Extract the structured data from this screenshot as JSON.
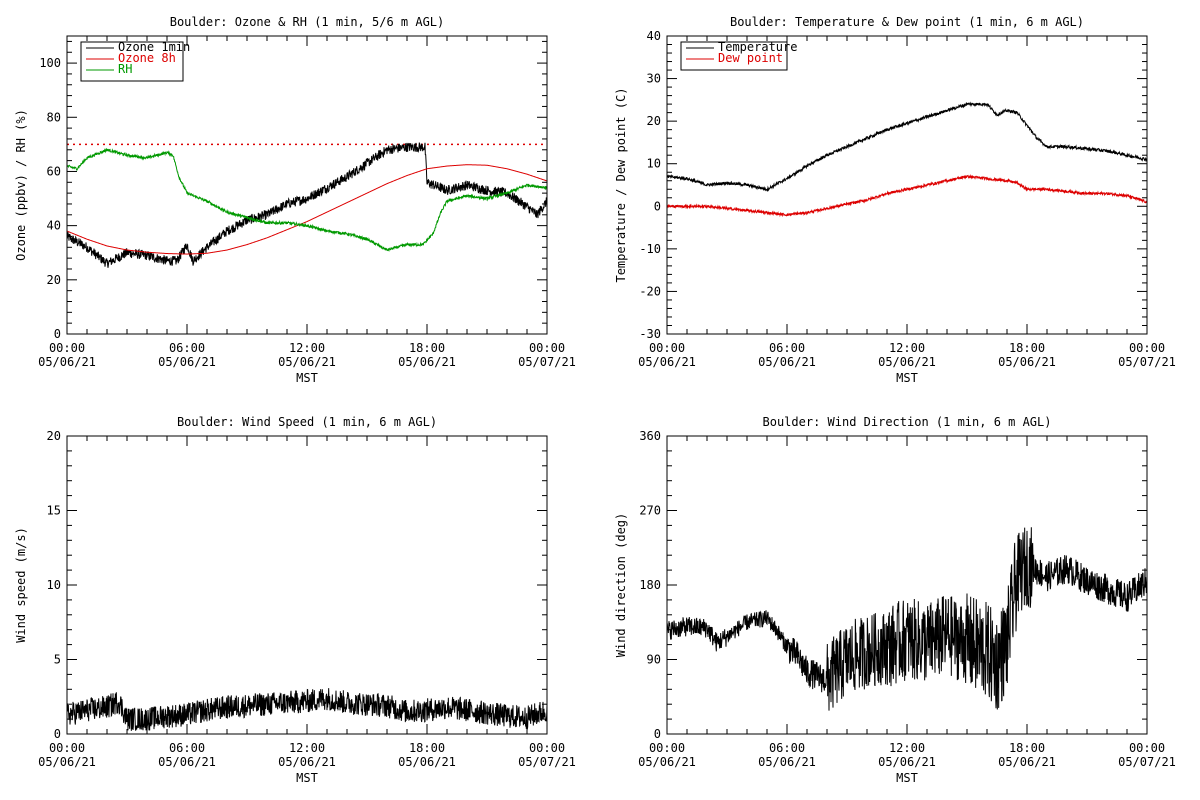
{
  "chart_data": [
    {
      "type": "line",
      "title": "Boulder: Ozone & RH (1 min, 5/6 m AGL)",
      "xlabel": "MST",
      "ylabel": "Ozone (ppbv) / RH (%)",
      "xlim": [
        0,
        24
      ],
      "ylim": [
        0,
        110
      ],
      "yticks": [
        0,
        20,
        40,
        60,
        80,
        100
      ],
      "x_ticks": [
        {
          "x": 0,
          "time": "00:00",
          "date": "05/06/21"
        },
        {
          "x": 6,
          "time": "06:00",
          "date": "05/06/21"
        },
        {
          "x": 12,
          "time": "12:00",
          "date": "05/06/21"
        },
        {
          "x": 18,
          "time": "18:00",
          "date": "05/06/21"
        },
        {
          "x": 24,
          "time": "00:00",
          "date": "05/07/21"
        }
      ],
      "reference_line": {
        "y": 70,
        "color": "#dd0000",
        "style": "dotted"
      },
      "legend_position": "top-left",
      "series": [
        {
          "name": "Ozone 1min",
          "color": "#000000",
          "noise": 1.8,
          "points": [
            [
              0,
              36
            ],
            [
              1,
              32
            ],
            [
              2,
              26
            ],
            [
              2.5,
              28
            ],
            [
              3,
              30
            ],
            [
              4,
              29
            ],
            [
              5,
              27
            ],
            [
              5.5,
              27
            ],
            [
              6,
              33
            ],
            [
              6.3,
              27
            ],
            [
              7,
              32
            ],
            [
              8,
              38
            ],
            [
              9,
              42
            ],
            [
              10,
              44
            ],
            [
              11,
              48
            ],
            [
              12,
              50
            ],
            [
              13,
              54
            ],
            [
              14,
              58
            ],
            [
              15,
              63
            ],
            [
              16,
              68
            ],
            [
              17,
              69
            ],
            [
              17.9,
              69
            ],
            [
              18,
              56
            ],
            [
              19,
              53
            ],
            [
              20,
              55
            ],
            [
              21,
              53
            ],
            [
              22,
              52
            ],
            [
              23,
              47
            ],
            [
              23.5,
              44
            ],
            [
              24,
              49
            ]
          ]
        },
        {
          "name": "Ozone 8h",
          "color": "#dd0000",
          "noise": 0,
          "points": [
            [
              0,
              38
            ],
            [
              1,
              35
            ],
            [
              2,
              32.5
            ],
            [
              3,
              31
            ],
            [
              4,
              30.2
            ],
            [
              5,
              29.7
            ],
            [
              6,
              29.5
            ],
            [
              7,
              29.8
            ],
            [
              8,
              31
            ],
            [
              9,
              33
            ],
            [
              10,
              35.5
            ],
            [
              11,
              38.5
            ],
            [
              12,
              41.5
            ],
            [
              13,
              45
            ],
            [
              14,
              48.5
            ],
            [
              15,
              52
            ],
            [
              16,
              55.5
            ],
            [
              17,
              58.5
            ],
            [
              18,
              61
            ],
            [
              19,
              62
            ],
            [
              20,
              62.5
            ],
            [
              21,
              62.3
            ],
            [
              22,
              61
            ],
            [
              23,
              59
            ],
            [
              24,
              56.5
            ]
          ]
        },
        {
          "name": "RH",
          "color": "#009900",
          "noise": 0.5,
          "points": [
            [
              0,
              62
            ],
            [
              0.5,
              61
            ],
            [
              1,
              65
            ],
            [
              2,
              68
            ],
            [
              3,
              66
            ],
            [
              4,
              65
            ],
            [
              5,
              67
            ],
            [
              5.3,
              66
            ],
            [
              5.6,
              58
            ],
            [
              6,
              52
            ],
            [
              7,
              49
            ],
            [
              8,
              45
            ],
            [
              8.5,
              44
            ],
            [
              9,
              43
            ],
            [
              10,
              41
            ],
            [
              11,
              41
            ],
            [
              12,
              40
            ],
            [
              13,
              38
            ],
            [
              14,
              37
            ],
            [
              15,
              35
            ],
            [
              16,
              31
            ],
            [
              17,
              33
            ],
            [
              17.8,
              33
            ],
            [
              18.3,
              37
            ],
            [
              18.7,
              45
            ],
            [
              19,
              49
            ],
            [
              20,
              51
            ],
            [
              21,
              50
            ],
            [
              22,
              52
            ],
            [
              23,
              55
            ],
            [
              24,
              54
            ]
          ]
        }
      ]
    },
    {
      "type": "line",
      "title": "Boulder: Temperature & Dew point (1 min, 6 m AGL)",
      "xlabel": "MST",
      "ylabel": "Temperature / Dew point (C)",
      "xlim": [
        0,
        24
      ],
      "ylim": [
        -30,
        40
      ],
      "yticks": [
        -30,
        -20,
        -10,
        0,
        10,
        20,
        30,
        40
      ],
      "x_ticks": [
        {
          "x": 0,
          "time": "00:00",
          "date": "05/06/21"
        },
        {
          "x": 6,
          "time": "06:00",
          "date": "05/06/21"
        },
        {
          "x": 12,
          "time": "12:00",
          "date": "05/06/21"
        },
        {
          "x": 18,
          "time": "18:00",
          "date": "05/06/21"
        },
        {
          "x": 24,
          "time": "00:00",
          "date": "05/07/21"
        }
      ],
      "legend_position": "top-left",
      "series": [
        {
          "name": "Temperature",
          "color": "#000000",
          "noise": 0.35,
          "points": [
            [
              0,
              7
            ],
            [
              1,
              6.5
            ],
            [
              2,
              5
            ],
            [
              3,
              5.5
            ],
            [
              4,
              5
            ],
            [
              5,
              4
            ],
            [
              6,
              6.5
            ],
            [
              7,
              9.5
            ],
            [
              8,
              12
            ],
            [
              9,
              14
            ],
            [
              10,
              16
            ],
            [
              11,
              18
            ],
            [
              12,
              19.5
            ],
            [
              13,
              21
            ],
            [
              14,
              22.5
            ],
            [
              15,
              24
            ],
            [
              16,
              24
            ],
            [
              16.5,
              21.5
            ],
            [
              17,
              22.5
            ],
            [
              17.5,
              22
            ],
            [
              18,
              19
            ],
            [
              18.5,
              16
            ],
            [
              19,
              14
            ],
            [
              20,
              14
            ],
            [
              21,
              13.5
            ],
            [
              22,
              13
            ],
            [
              23,
              12
            ],
            [
              24,
              11
            ]
          ]
        },
        {
          "name": "Dew point",
          "color": "#dd0000",
          "noise": 0.3,
          "points": [
            [
              0,
              0
            ],
            [
              1,
              0
            ],
            [
              2,
              0
            ],
            [
              3,
              -0.5
            ],
            [
              4,
              -1
            ],
            [
              5,
              -1.5
            ],
            [
              6,
              -2
            ],
            [
              7,
              -1.5
            ],
            [
              8,
              -0.5
            ],
            [
              9,
              0.5
            ],
            [
              10,
              1.5
            ],
            [
              11,
              3
            ],
            [
              12,
              4
            ],
            [
              13,
              5
            ],
            [
              14,
              6
            ],
            [
              15,
              7
            ],
            [
              16,
              6.5
            ],
            [
              17,
              6
            ],
            [
              17.5,
              5.5
            ],
            [
              18,
              4
            ],
            [
              19,
              4
            ],
            [
              20,
              3.5
            ],
            [
              21,
              3
            ],
            [
              22,
              3
            ],
            [
              23,
              2.5
            ],
            [
              24,
              1
            ]
          ]
        }
      ]
    },
    {
      "type": "line",
      "title": "Boulder: Wind Speed (1 min, 6 m AGL)",
      "xlabel": "MST",
      "ylabel": "Wind speed (m/s)",
      "xlim": [
        0,
        24
      ],
      "ylim": [
        0,
        20
      ],
      "yticks": [
        0,
        5,
        10,
        15,
        20
      ],
      "x_ticks": [
        {
          "x": 0,
          "time": "00:00",
          "date": "05/06/21"
        },
        {
          "x": 6,
          "time": "06:00",
          "date": "05/06/21"
        },
        {
          "x": 12,
          "time": "12:00",
          "date": "05/06/21"
        },
        {
          "x": 18,
          "time": "18:00",
          "date": "05/06/21"
        },
        {
          "x": 24,
          "time": "00:00",
          "date": "05/07/21"
        }
      ],
      "series": [
        {
          "name": "",
          "color": "#000000",
          "noise": 0.8,
          "points": [
            [
              0,
              1.3
            ],
            [
              1,
              1.6
            ],
            [
              2,
              1.8
            ],
            [
              2.6,
              2.2
            ],
            [
              3,
              1
            ],
            [
              4,
              1
            ],
            [
              5,
              1.2
            ],
            [
              6,
              1.3
            ],
            [
              7,
              1.6
            ],
            [
              8,
              1.8
            ],
            [
              9,
              1.9
            ],
            [
              10,
              2
            ],
            [
              11,
              2.1
            ],
            [
              12,
              2.2
            ],
            [
              13,
              2.4
            ],
            [
              14,
              2.1
            ],
            [
              15,
              2
            ],
            [
              16,
              1.9
            ],
            [
              17,
              1.5
            ],
            [
              18,
              1.6
            ],
            [
              19,
              1.8
            ],
            [
              20,
              1.6
            ],
            [
              21,
              1.4
            ],
            [
              22,
              1.2
            ],
            [
              23,
              1.1
            ],
            [
              24,
              1.6
            ]
          ]
        }
      ]
    },
    {
      "type": "line",
      "title": "Boulder: Wind Direction (1 min, 6 m AGL)",
      "xlabel": "MST",
      "ylabel": "Wind direction (deg)",
      "xlim": [
        0,
        24
      ],
      "ylim": [
        0,
        360
      ],
      "yticks": [
        0,
        90,
        180,
        270,
        360
      ],
      "x_ticks": [
        {
          "x": 0,
          "time": "00:00",
          "date": "05/06/21"
        },
        {
          "x": 6,
          "time": "06:00",
          "date": "05/06/21"
        },
        {
          "x": 12,
          "time": "12:00",
          "date": "05/06/21"
        },
        {
          "x": 18,
          "time": "18:00",
          "date": "05/06/21"
        },
        {
          "x": 24,
          "time": "00:00",
          "date": "05/07/21"
        }
      ],
      "series": [
        {
          "name": "",
          "color": "#000000",
          "noise": 0,
          "noise_segments": [
            [
              0,
              3,
              12
            ],
            [
              3,
              6,
              10
            ],
            [
              6,
              8,
              18
            ],
            [
              8,
              11,
              45
            ],
            [
              11,
              15,
              50
            ],
            [
              15,
              17.5,
              60
            ],
            [
              17.5,
              18.3,
              50
            ],
            [
              18.3,
              24,
              18
            ]
          ],
          "points": [
            [
              0,
              125
            ],
            [
              1,
              130
            ],
            [
              2,
              128
            ],
            [
              2.5,
              110
            ],
            [
              3,
              118
            ],
            [
              4,
              135
            ],
            [
              5,
              140
            ],
            [
              5.5,
              125
            ],
            [
              6,
              105
            ],
            [
              6.5,
              95
            ],
            [
              7,
              75
            ],
            [
              7.5,
              70
            ],
            [
              8,
              65
            ],
            [
              9,
              90
            ],
            [
              10,
              100
            ],
            [
              11,
              105
            ],
            [
              12,
              115
            ],
            [
              13,
              110
            ],
            [
              14,
              120
            ],
            [
              15,
              110
            ],
            [
              16,
              100
            ],
            [
              16.5,
              85
            ],
            [
              17,
              110
            ],
            [
              17.5,
              190
            ],
            [
              18,
              205
            ],
            [
              19,
              190
            ],
            [
              20,
              200
            ],
            [
              21,
              185
            ],
            [
              22,
              175
            ],
            [
              23,
              165
            ],
            [
              24,
              185
            ]
          ]
        }
      ]
    }
  ]
}
